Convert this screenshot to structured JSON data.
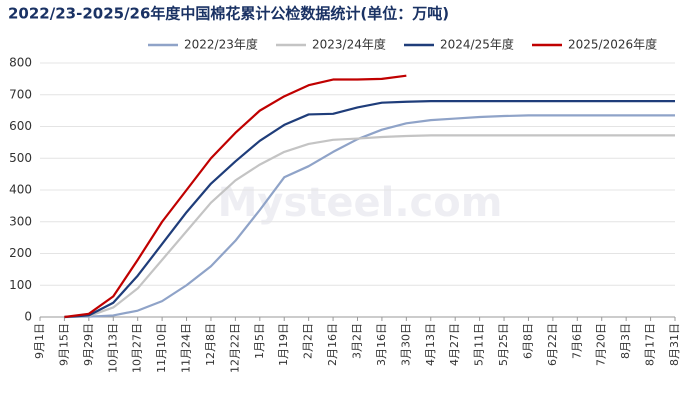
{
  "chart_data": {
    "type": "line",
    "title": "2022/23-2025/26年度中国棉花累计公检数据统计(单位：万吨)",
    "watermark": "Mysteel.com",
    "categories": [
      "9月1日",
      "9月15日",
      "9月29日",
      "10月13日",
      "10月27日",
      "11月10日",
      "11月24日",
      "12月8日",
      "12月22日",
      "1月5日",
      "1月19日",
      "2月2日",
      "2月16日",
      "3月2日",
      "3月16日",
      "3月30日",
      "4月13日",
      "4月27日",
      "5月11日",
      "5月25日",
      "6月8日",
      "6月22日",
      "7月6日",
      "7月20日",
      "8月3日",
      "8月17日",
      "8月31日"
    ],
    "series": [
      {
        "name": "2022/23年度",
        "color": "#8fa3c8",
        "values": [
          null,
          0,
          1,
          5,
          20,
          50,
          100,
          160,
          240,
          337,
          440,
          475,
          520,
          560,
          590,
          610,
          620,
          625,
          630,
          633,
          635,
          635,
          635,
          635,
          635,
          635,
          635
        ]
      },
      {
        "name": "2023/24年度",
        "color": "#c4c4c4",
        "values": [
          null,
          0,
          3,
          30,
          90,
          180,
          270,
          360,
          430,
          480,
          520,
          545,
          558,
          562,
          567,
          570,
          572,
          572,
          572,
          572,
          572,
          572,
          572,
          572,
          572,
          572,
          572
        ]
      },
      {
        "name": "2024/25年度",
        "color": "#1f3d7a",
        "values": [
          null,
          0,
          5,
          45,
          130,
          230,
          330,
          420,
          490,
          555,
          605,
          638,
          640,
          660,
          675,
          678,
          680,
          680,
          680,
          680,
          680,
          680,
          680,
          680,
          680,
          680,
          680
        ]
      },
      {
        "name": "2025/2026年度",
        "color": "#c00000",
        "values": [
          null,
          0,
          10,
          65,
          180,
          300,
          400,
          500,
          580,
          650,
          695,
          730,
          748,
          748,
          750,
          760,
          null,
          null,
          null,
          null,
          null,
          null,
          null,
          null,
          null,
          null,
          null
        ]
      }
    ],
    "ylim": [
      0,
      800
    ],
    "yticks": [
      0,
      100,
      200,
      300,
      400,
      500,
      600,
      700,
      800
    ],
    "grid": true,
    "legend": "top"
  }
}
